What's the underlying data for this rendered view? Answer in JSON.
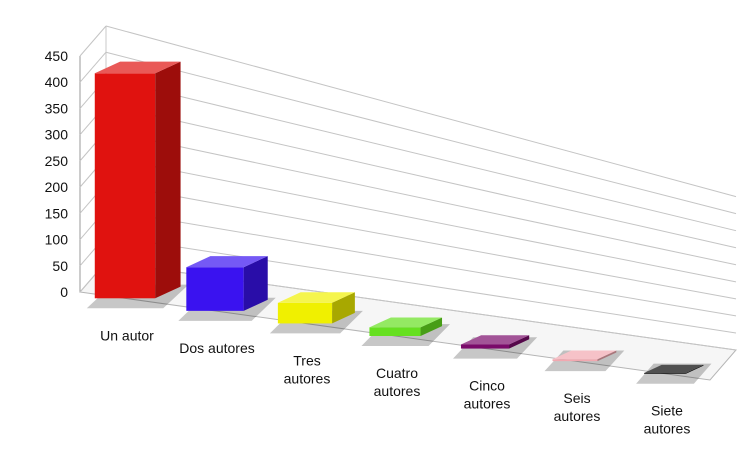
{
  "chart_data": {
    "type": "bar",
    "style": "3d-perspective",
    "title": "",
    "xlabel": "",
    "ylabel": "",
    "ylim": [
      0,
      450
    ],
    "yticks": [
      0,
      50,
      100,
      150,
      200,
      250,
      300,
      350,
      400,
      450
    ],
    "grid": true,
    "legend": "none",
    "categories": [
      [
        "Un autor"
      ],
      [
        "Dos autores"
      ],
      [
        "Tres",
        "autores"
      ],
      [
        "Cuatro",
        "autores"
      ],
      [
        "Cinco",
        "autores"
      ],
      [
        "Seis",
        "autores"
      ],
      [
        "Siete",
        "autores"
      ]
    ],
    "values": [
      440,
      90,
      45,
      20,
      10,
      5,
      2
    ],
    "colors": [
      "#e0120f",
      "#3a12f0",
      "#f0f000",
      "#66e020",
      "#7a0a6a",
      "#f2a8b0",
      "#050505"
    ]
  }
}
